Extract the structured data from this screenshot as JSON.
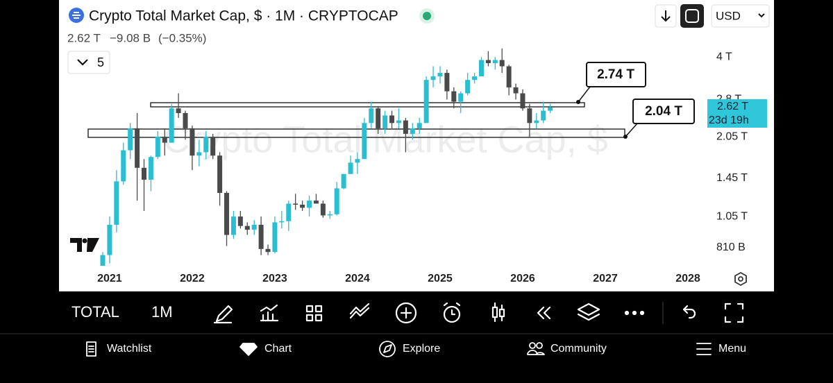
{
  "header": {
    "title": "Crypto Total Market Cap, $ · 1M · CRYPTOCAP",
    "price": "2.62 T",
    "change": "−9.08 B",
    "change_pct": "(−0.35%)",
    "indicator_count": "5",
    "currency": "USD"
  },
  "chart_data": {
    "type": "candlestick",
    "watermark": "Crypto Total Market Cap, $",
    "log_scale": true,
    "grid": false,
    "up_color": "#2bbdd0",
    "down_color": "#4a4a4a",
    "categories": [
      null,
      "2021",
      null,
      null,
      null,
      null,
      null,
      null,
      null,
      null,
      null,
      null,
      null,
      "2022",
      null,
      null,
      null,
      null,
      null,
      null,
      null,
      null,
      null,
      null,
      null,
      "2023",
      null,
      null,
      null,
      null,
      null,
      null,
      null,
      null,
      null,
      null,
      null,
      "2024",
      null,
      null,
      null,
      null,
      null,
      null,
      null,
      null,
      null,
      null,
      null,
      "2025",
      null,
      null,
      null,
      null,
      null,
      null,
      null,
      null,
      null,
      null,
      null,
      "2026",
      null,
      null,
      null,
      null,
      null,
      null,
      null,
      null,
      null,
      null,
      null,
      "2027",
      null,
      null,
      null,
      null,
      null,
      null,
      null,
      null,
      null,
      null,
      null,
      "2028"
    ],
    "open": [
      0.58,
      0.76,
      0.98,
      1.41,
      1.83,
      2.2,
      1.58,
      1.43,
      1.73,
      2.05,
      1.95,
      2.6,
      2.5,
      2.2,
      1.75,
      1.8,
      2.05,
      1.75,
      1.28,
      0.9,
      1.05,
      0.97,
      0.94,
      0.98,
      0.8,
      0.78,
      1.0,
      1.01,
      1.17,
      1.16,
      1.13,
      1.2,
      1.17,
      1.06,
      1.07,
      1.33,
      1.5,
      1.65,
      1.7,
      2.3,
      2.6,
      2.2,
      2.45,
      2.3,
      2.35,
      2.1,
      2.2,
      2.3,
      3.3,
      3.4,
      3.5,
      3.0,
      2.75,
      2.95,
      3.3,
      3.4,
      3.9,
      3.8,
      3.9,
      3.7,
      3.1,
      2.95,
      2.6,
      2.3,
      2.35,
      2.55,
      null,
      null,
      null,
      null,
      null,
      null,
      null,
      null,
      null,
      null,
      null,
      null,
      null,
      null,
      null,
      null,
      null,
      null,
      null,
      null
    ],
    "high": [
      0.78,
      1.05,
      1.55,
      1.95,
      2.3,
      2.5,
      1.7,
      1.75,
      2.15,
      2.2,
      2.7,
      2.95,
      2.55,
      2.25,
      2.0,
      2.15,
      2.1,
      1.8,
      1.3,
      1.1,
      1.1,
      1.0,
      1.02,
      1.05,
      0.83,
      1.05,
      1.1,
      1.2,
      1.27,
      1.2,
      1.25,
      1.27,
      1.2,
      1.1,
      1.4,
      1.5,
      1.75,
      1.8,
      2.4,
      2.75,
      2.65,
      2.55,
      2.55,
      2.6,
      2.4,
      2.3,
      2.4,
      3.4,
      3.7,
      3.7,
      3.6,
      3.1,
      3.0,
      3.5,
      3.5,
      4.0,
      4.2,
      4.0,
      4.3,
      3.75,
      3.2,
      3.05,
      2.7,
      2.5,
      2.75,
      2.7,
      null,
      null,
      null,
      null,
      null,
      null,
      null,
      null,
      null,
      null,
      null,
      null,
      null,
      null,
      null,
      null,
      null,
      null,
      null,
      null
    ],
    "low": [
      0.55,
      0.71,
      0.92,
      1.37,
      1.7,
      1.2,
      1.1,
      1.3,
      1.7,
      1.75,
      1.95,
      2.4,
      2.0,
      1.55,
      1.6,
      1.7,
      1.7,
      1.15,
      0.82,
      0.87,
      0.95,
      0.9,
      0.9,
      0.76,
      0.76,
      0.77,
      0.95,
      0.93,
      1.11,
      1.1,
      1.05,
      1.17,
      1.04,
      1.03,
      1.06,
      1.32,
      1.5,
      1.5,
      1.7,
      2.2,
      2.1,
      2.1,
      2.2,
      2.2,
      1.8,
      2.0,
      2.1,
      2.3,
      3.1,
      3.2,
      2.8,
      2.6,
      2.5,
      2.9,
      3.2,
      3.4,
      3.7,
      3.6,
      3.5,
      2.9,
      2.8,
      2.55,
      2.05,
      2.2,
      2.3,
      2.5,
      null,
      null,
      null,
      null,
      null,
      null,
      null,
      null,
      null,
      null,
      null,
      null,
      null,
      null,
      null,
      null,
      null,
      null,
      null,
      null
    ],
    "close": [
      0.76,
      0.98,
      1.41,
      1.83,
      2.2,
      1.58,
      1.43,
      1.73,
      2.05,
      1.95,
      2.6,
      2.5,
      2.2,
      1.75,
      1.8,
      2.05,
      1.75,
      1.28,
      0.9,
      1.05,
      0.97,
      0.94,
      0.98,
      0.8,
      0.78,
      1.0,
      1.01,
      1.17,
      1.16,
      1.13,
      1.2,
      1.17,
      1.06,
      1.07,
      1.33,
      1.5,
      1.65,
      1.7,
      2.3,
      2.6,
      2.2,
      2.45,
      2.3,
      2.35,
      2.1,
      2.2,
      2.3,
      3.3,
      3.4,
      3.5,
      3.0,
      2.75,
      2.95,
      3.3,
      3.4,
      3.9,
      3.8,
      3.9,
      3.7,
      3.1,
      2.95,
      2.6,
      2.3,
      2.35,
      2.55,
      2.62,
      null,
      null,
      null,
      null,
      null,
      null,
      null,
      null,
      null,
      null,
      null,
      null,
      null,
      null,
      null,
      null,
      null,
      null,
      null,
      null
    ],
    "ylim": [
      0.695,
      4.55
    ],
    "yticks": [
      {
        "value": 0.81,
        "label": "810 B"
      },
      {
        "value": 1.05,
        "label": "1.05 T"
      },
      {
        "value": 1.45,
        "label": "1.45 T"
      },
      {
        "value": 2.05,
        "label": "2.05 T"
      },
      {
        "value": 2.8,
        "label": "2.8 T"
      },
      {
        "value": 4,
        "label": "4 T"
      }
    ],
    "last_price_label": "2.62 T",
    "countdown": "23d 19h",
    "annotations": [
      "2.74 T",
      "2.04 T"
    ]
  },
  "toolbar": {
    "symbol": "TOTAL",
    "interval": "1M"
  },
  "nav": [
    "Watchlist",
    "Chart",
    "Explore",
    "Community",
    "Menu"
  ]
}
